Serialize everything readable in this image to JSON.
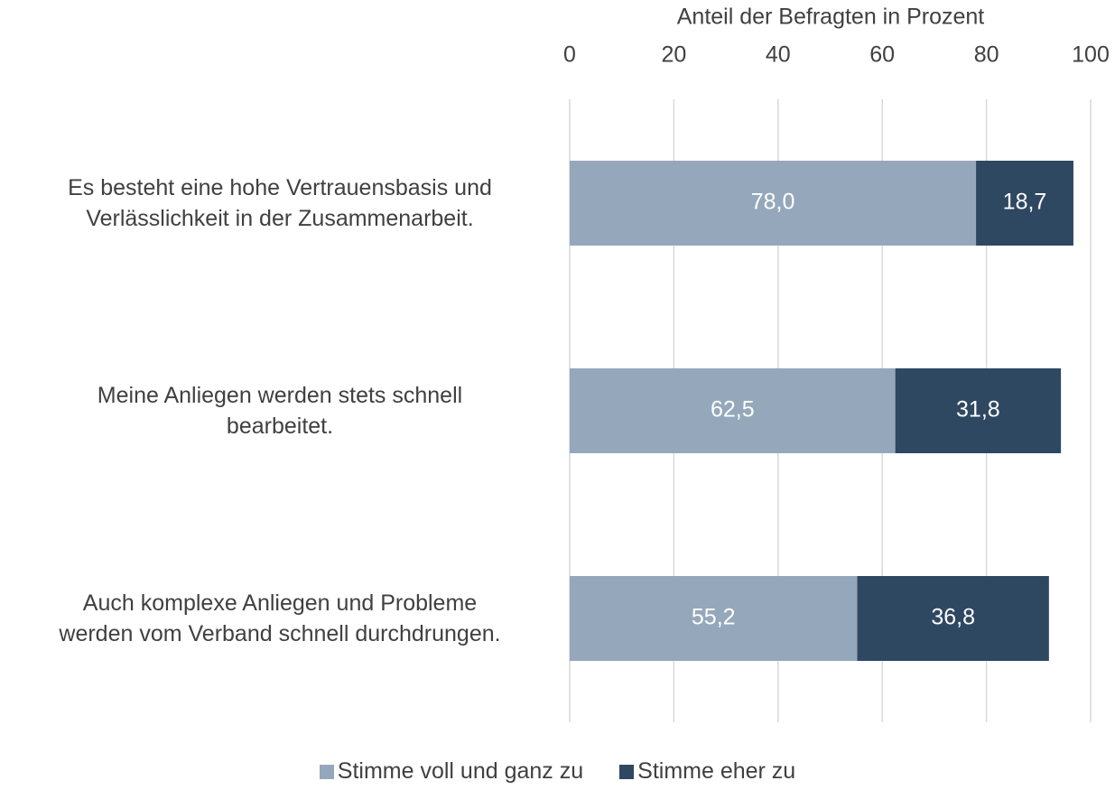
{
  "chart_data": {
    "type": "stacked-barh",
    "x_label": "Anteil der Befragten in Prozent",
    "categories": [
      "Es besteht eine hohe Vertrauensbasis und\nVerlässlichkeit in der Zusammenarbeit.",
      "Meine Anliegen werden stets schnell\nbearbeitet.",
      "Auch komplexe Anliegen und Probleme\nwerden vom Verband schnell durchdrungen."
    ],
    "series": [
      {
        "name": "Stimme voll und ganz zu",
        "color": "#95a8bb",
        "values": [
          78.0,
          62.5,
          55.2
        ],
        "value_labels": [
          "78,0",
          "62,5",
          "55,2"
        ]
      },
      {
        "name": "Stimme eher zu",
        "color": "#2e4862",
        "values": [
          18.7,
          31.8,
          36.8
        ],
        "value_labels": [
          "18,7",
          "31,8",
          "36,8"
        ]
      }
    ],
    "xlim": [
      0,
      100
    ],
    "xticks": [
      0,
      20,
      40,
      60,
      80,
      100
    ],
    "grid": true,
    "x_axis_position": "top",
    "legend": "bottom"
  }
}
